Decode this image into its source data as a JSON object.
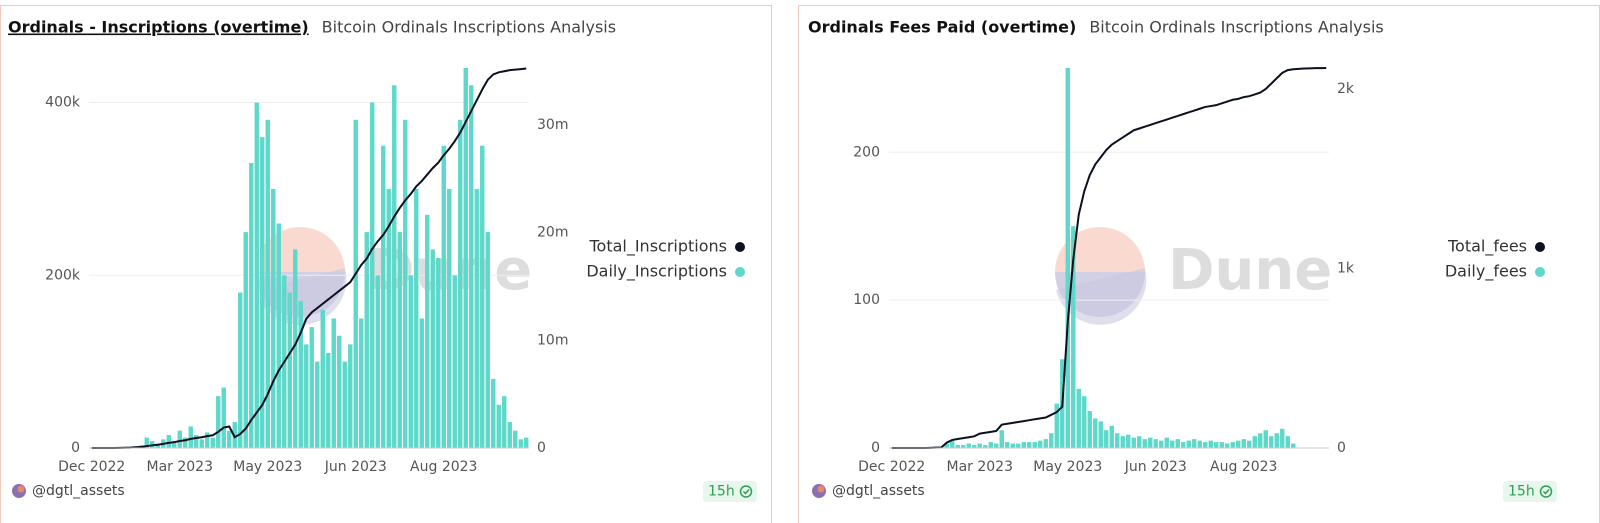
{
  "chart_data": [
    {
      "type": "combo",
      "title": "Ordinals - Inscriptions (overtime)",
      "subtitle": "Bitcoin Ordinals Inscriptions Analysis",
      "categories": [
        "Dec 2022",
        null,
        null,
        null,
        null,
        null,
        null,
        null,
        null,
        null,
        null,
        null,
        null,
        null,
        null,
        null,
        "Mar 2023",
        null,
        null,
        null,
        null,
        null,
        null,
        null,
        null,
        null,
        null,
        null,
        null,
        null,
        null,
        null,
        "May 2023",
        null,
        null,
        null,
        null,
        null,
        null,
        null,
        null,
        null,
        null,
        null,
        null,
        null,
        null,
        null,
        "Jun 2023",
        null,
        null,
        null,
        null,
        null,
        null,
        null,
        null,
        null,
        null,
        null,
        null,
        null,
        null,
        null,
        "Aug 2023",
        null,
        null,
        null,
        null,
        null,
        null,
        null,
        null,
        null,
        null,
        null,
        null,
        null,
        null,
        null
      ],
      "series": [
        {
          "name": "Total_Inscriptions",
          "type": "line",
          "axis": "y2",
          "color": "#0b1120",
          "values": [
            0,
            0,
            0,
            0,
            0,
            10000,
            20000,
            40000,
            70000,
            100000,
            180000,
            250000,
            300000,
            380000,
            480000,
            540000,
            650000,
            720000,
            850000,
            930000,
            1000000,
            1100000,
            1180000,
            1500000,
            1900000,
            2000000,
            1000000,
            1300000,
            1800000,
            2600000,
            3300000,
            4000000,
            5000000,
            6200000,
            7200000,
            8000000,
            8800000,
            9600000,
            10700000,
            12000000,
            12600000,
            13000000,
            13400000,
            13800000,
            14200000,
            14600000,
            15000000,
            15400000,
            16200000,
            17000000,
            17600000,
            18500000,
            19200000,
            19800000,
            20600000,
            21500000,
            22300000,
            23000000,
            23600000,
            24300000,
            24800000,
            25400000,
            26000000,
            26500000,
            27200000,
            27800000,
            28500000,
            29300000,
            30300000,
            31300000,
            32300000,
            33300000,
            34200000,
            34700000,
            34900000,
            35000000,
            35100000,
            35150000,
            35200000,
            35250000
          ]
        },
        {
          "name": "Daily_Inscriptions",
          "type": "bar",
          "color": "#5dd8ca",
          "values": [
            0,
            0,
            0,
            0,
            0,
            0,
            500,
            1000,
            2000,
            3000,
            12000,
            8000,
            5000,
            10000,
            15000,
            8000,
            20000,
            12000,
            25000,
            15000,
            10000,
            18000,
            12000,
            60000,
            70000,
            20000,
            30000,
            180000,
            250000,
            330000,
            400000,
            360000,
            380000,
            300000,
            260000,
            200000,
            180000,
            230000,
            170000,
            120000,
            140000,
            100000,
            160000,
            110000,
            150000,
            130000,
            100000,
            120000,
            380000,
            150000,
            250000,
            400000,
            200000,
            350000,
            300000,
            420000,
            250000,
            380000,
            200000,
            300000,
            150000,
            270000,
            230000,
            220000,
            350000,
            300000,
            200000,
            380000,
            440000,
            420000,
            300000,
            350000,
            250000,
            80000,
            50000,
            60000,
            30000,
            20000,
            10000,
            12000
          ]
        }
      ],
      "ylim": [
        0,
        440000
      ],
      "yticks": [
        0,
        {
          "value": 200000,
          "label": "200k"
        },
        {
          "value": 400000,
          "label": "400k"
        }
      ],
      "y2lim": [
        0,
        35300000
      ],
      "y2ticks": [
        0,
        {
          "value": 10000000,
          "label": "10m"
        },
        {
          "value": 20000000,
          "label": "20m"
        },
        {
          "value": 30000000,
          "label": "30m"
        }
      ],
      "grid": true,
      "legend": "right"
    },
    {
      "type": "combo",
      "title": "Ordinals Fees Paid (overtime)",
      "subtitle": "Bitcoin Ordinals Inscriptions Analysis",
      "categories": [
        "Dec 2022",
        null,
        null,
        null,
        null,
        null,
        null,
        null,
        null,
        null,
        null,
        null,
        null,
        null,
        null,
        null,
        "Mar 2023",
        null,
        null,
        null,
        null,
        null,
        null,
        null,
        null,
        null,
        null,
        null,
        null,
        null,
        null,
        null,
        "May 2023",
        null,
        null,
        null,
        null,
        null,
        null,
        null,
        null,
        null,
        null,
        null,
        null,
        null,
        null,
        null,
        "Jun 2023",
        null,
        null,
        null,
        null,
        null,
        null,
        null,
        null,
        null,
        null,
        null,
        null,
        null,
        null,
        null,
        "Aug 2023",
        null,
        null,
        null,
        null,
        null,
        null,
        null,
        null,
        null,
        null,
        null,
        null,
        null,
        null,
        null
      ],
      "series": [
        {
          "name": "Total_fees",
          "type": "line",
          "axis": "y2",
          "color": "#0b1120",
          "values": [
            0,
            0,
            0,
            0,
            0,
            0,
            0,
            1,
            2,
            3,
            30,
            45,
            50,
            55,
            60,
            65,
            80,
            85,
            90,
            95,
            130,
            135,
            140,
            145,
            150,
            155,
            160,
            165,
            170,
            185,
            200,
            230,
            700,
            1050,
            1300,
            1430,
            1520,
            1580,
            1620,
            1660,
            1690,
            1710,
            1730,
            1750,
            1770,
            1780,
            1790,
            1800,
            1810,
            1820,
            1830,
            1840,
            1850,
            1860,
            1870,
            1880,
            1890,
            1900,
            1905,
            1910,
            1920,
            1930,
            1940,
            1945,
            1955,
            1960,
            1970,
            1980,
            2000,
            2030,
            2060,
            2090,
            2105,
            2110,
            2112,
            2114,
            2115,
            2116,
            2116,
            2117
          ]
        },
        {
          "name": "Daily_fees",
          "type": "bar",
          "color": "#5dd8ca",
          "values": [
            0,
            0,
            0,
            0,
            0,
            0,
            0,
            0.5,
            1,
            1,
            3,
            5,
            2,
            2,
            3,
            2,
            3,
            2,
            4,
            3,
            12,
            4,
            3,
            3,
            4,
            4,
            4,
            5,
            6,
            10,
            30,
            60,
            257,
            150,
            40,
            35,
            25,
            20,
            18,
            12,
            15,
            10,
            8,
            9,
            7,
            8,
            6,
            7,
            6,
            5,
            7,
            5,
            6,
            4,
            5,
            6,
            5,
            4,
            5,
            4,
            4,
            3,
            4,
            5,
            6,
            5,
            8,
            10,
            12,
            8,
            10,
            13,
            8,
            3,
            0,
            0,
            0,
            0,
            0,
            0
          ]
        }
      ],
      "ylim": [
        0,
        257
      ],
      "yticks": [
        0,
        100,
        200
      ],
      "y2lim": [
        0,
        2117
      ],
      "y2ticks": [
        0,
        {
          "value": 1000,
          "label": "1k"
        },
        {
          "value": 2000,
          "label": "2k"
        }
      ],
      "grid": true,
      "legend": "right"
    }
  ],
  "panels": [
    {
      "author": "@dgtl_assets",
      "updated": "15h",
      "watermark": "Dune"
    },
    {
      "author": "@dgtl_assets",
      "updated": "15h",
      "watermark": "Dune"
    }
  ]
}
